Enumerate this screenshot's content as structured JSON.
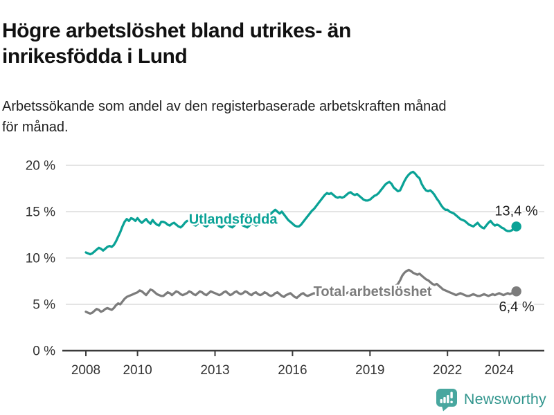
{
  "header": {
    "title_lines": [
      "Högre arbetslöshet bland utrikes- än",
      "inrikesfödda i Lund"
    ],
    "subtitle_lines": [
      "Arbetssökande som andel av den registerbaserade arbetskraften månad",
      "för månad."
    ]
  },
  "footer": {
    "brand": "Newsworthy",
    "brand_color": "#31958d",
    "icon_color": "#48a79f"
  },
  "chart_data": {
    "type": "line",
    "title": "Högre arbetslöshet bland utrikes- än inrikesfödda i Lund",
    "subtitle": "Arbetssökande som andel av den registerbaserade arbetskraften månad för månad.",
    "frequency": "monthly",
    "x_start": 2008,
    "x_end": 2024.67,
    "ylim": [
      0,
      20
    ],
    "grid": true,
    "legend_position": "inline-labels",
    "yticks": [
      {
        "value": 0,
        "label": "0 %"
      },
      {
        "value": 5,
        "label": "5 %"
      },
      {
        "value": 10,
        "label": "10 %"
      },
      {
        "value": 15,
        "label": "15 %"
      },
      {
        "value": 20,
        "label": "20 %"
      }
    ],
    "xticks": [
      {
        "value": 2008,
        "label": "2008"
      },
      {
        "value": 2010,
        "label": "2010"
      },
      {
        "value": 2013,
        "label": "2013"
      },
      {
        "value": 2016,
        "label": "2016"
      },
      {
        "value": 2019,
        "label": "2019"
      },
      {
        "value": 2022,
        "label": "2022"
      },
      {
        "value": 2024,
        "label": "2024"
      }
    ],
    "series": [
      {
        "name": "Utlandsfödda",
        "color": "#0aa296",
        "end_label": "13,4 %",
        "end_value": 13.4,
        "label_anchor": {
          "x": 2013.7,
          "y": 14.2
        },
        "values": [
          10.6,
          10.5,
          10.4,
          10.5,
          10.7,
          10.9,
          11.1,
          11.0,
          10.8,
          11.0,
          11.2,
          11.3,
          11.2,
          11.4,
          11.8,
          12.3,
          12.8,
          13.4,
          13.9,
          14.2,
          14.0,
          14.3,
          14.2,
          14.0,
          14.3,
          14.0,
          13.8,
          14.0,
          14.2,
          13.9,
          13.7,
          14.1,
          13.8,
          13.6,
          13.5,
          13.9,
          13.9,
          13.8,
          13.6,
          13.5,
          13.7,
          13.8,
          13.6,
          13.4,
          13.3,
          13.5,
          13.8,
          14.0,
          14.0,
          13.8,
          13.6,
          13.5,
          13.7,
          13.9,
          13.7,
          13.5,
          13.4,
          13.6,
          13.8,
          13.9,
          13.8,
          13.6,
          13.4,
          13.3,
          13.5,
          13.7,
          13.6,
          13.4,
          13.3,
          13.5,
          13.7,
          13.8,
          13.7,
          13.5,
          13.4,
          13.3,
          13.5,
          13.8,
          13.7,
          13.5,
          13.6,
          13.8,
          14.0,
          14.2,
          14.3,
          14.5,
          14.8,
          15.0,
          15.2,
          15.0,
          14.8,
          15.0,
          14.7,
          14.4,
          14.1,
          13.9,
          13.7,
          13.5,
          13.4,
          13.4,
          13.6,
          13.9,
          14.2,
          14.5,
          14.8,
          15.1,
          15.3,
          15.6,
          15.9,
          16.2,
          16.5,
          16.8,
          17.0,
          16.9,
          17.0,
          16.8,
          16.6,
          16.5,
          16.6,
          16.5,
          16.6,
          16.8,
          17.0,
          17.1,
          16.9,
          16.8,
          16.9,
          16.7,
          16.5,
          16.3,
          16.2,
          16.2,
          16.3,
          16.5,
          16.7,
          16.8,
          17.0,
          17.3,
          17.6,
          17.9,
          18.1,
          18.2,
          18.0,
          17.6,
          17.4,
          17.2,
          17.3,
          17.8,
          18.3,
          18.7,
          19.0,
          19.2,
          19.3,
          19.1,
          18.8,
          18.6,
          18.0,
          17.6,
          17.3,
          17.2,
          17.3,
          17.1,
          16.8,
          16.4,
          16.1,
          15.7,
          15.4,
          15.2,
          15.2,
          15.0,
          14.9,
          14.8,
          14.6,
          14.4,
          14.2,
          14.1,
          14.0,
          13.8,
          13.6,
          13.5,
          13.4,
          13.6,
          13.8,
          13.5,
          13.3,
          13.2,
          13.5,
          13.8,
          14.0,
          13.7,
          13.5,
          13.6,
          13.5,
          13.3,
          13.2,
          13.0,
          12.9,
          12.9,
          13.0,
          13.2,
          13.4
        ]
      },
      {
        "name": "Total arbetslöshet",
        "color": "#7c7c7c",
        "end_label": "6,4 %",
        "end_value": 6.4,
        "label_anchor": {
          "x": 2019.1,
          "y": 6.4
        },
        "values": [
          4.2,
          4.1,
          4.0,
          4.1,
          4.3,
          4.5,
          4.4,
          4.2,
          4.3,
          4.5,
          4.6,
          4.5,
          4.4,
          4.6,
          4.9,
          5.1,
          5.0,
          5.3,
          5.6,
          5.8,
          5.9,
          6.0,
          6.1,
          6.2,
          6.3,
          6.5,
          6.4,
          6.2,
          6.0,
          6.3,
          6.6,
          6.5,
          6.3,
          6.1,
          6.0,
          5.9,
          5.9,
          6.1,
          6.3,
          6.2,
          6.0,
          6.2,
          6.4,
          6.3,
          6.1,
          6.0,
          6.1,
          6.2,
          6.4,
          6.3,
          6.1,
          6.0,
          6.2,
          6.4,
          6.3,
          6.1,
          6.0,
          6.2,
          6.4,
          6.3,
          6.2,
          6.1,
          6.0,
          6.1,
          6.3,
          6.4,
          6.2,
          6.0,
          6.1,
          6.3,
          6.4,
          6.2,
          6.1,
          6.2,
          6.4,
          6.3,
          6.1,
          6.0,
          6.2,
          6.3,
          6.1,
          6.0,
          6.1,
          6.3,
          6.2,
          6.0,
          5.9,
          6.0,
          6.2,
          6.3,
          6.1,
          5.9,
          5.8,
          6.0,
          6.1,
          6.2,
          6.0,
          5.8,
          5.7,
          5.9,
          6.1,
          6.2,
          6.0,
          5.9,
          6.0,
          6.1,
          6.2,
          6.1,
          6.0,
          6.1,
          6.2,
          6.1,
          6.0,
          6.2,
          6.3,
          6.2,
          6.1,
          6.2,
          6.3,
          6.2,
          6.1,
          6.2,
          6.3,
          6.2,
          6.1,
          6.2,
          6.4,
          6.3,
          6.2,
          6.3,
          6.4,
          6.3,
          6.3,
          6.4,
          6.5,
          6.4,
          6.5,
          6.6,
          6.7,
          6.6,
          6.5,
          6.6,
          6.7,
          6.8,
          7.0,
          7.2,
          7.6,
          8.1,
          8.4,
          8.6,
          8.7,
          8.6,
          8.4,
          8.3,
          8.2,
          8.3,
          8.1,
          7.9,
          7.7,
          7.6,
          7.4,
          7.2,
          7.1,
          7.2,
          7.0,
          6.8,
          6.6,
          6.5,
          6.4,
          6.3,
          6.2,
          6.1,
          6.0,
          6.1,
          6.2,
          6.1,
          6.0,
          5.9,
          5.9,
          6.0,
          6.1,
          6.0,
          5.9,
          5.9,
          6.0,
          6.1,
          6.0,
          5.9,
          6.0,
          6.1,
          6.0,
          6.1,
          6.2,
          6.1,
          6.0,
          6.1,
          6.2,
          6.1,
          6.2,
          6.3,
          6.4
        ]
      }
    ]
  }
}
